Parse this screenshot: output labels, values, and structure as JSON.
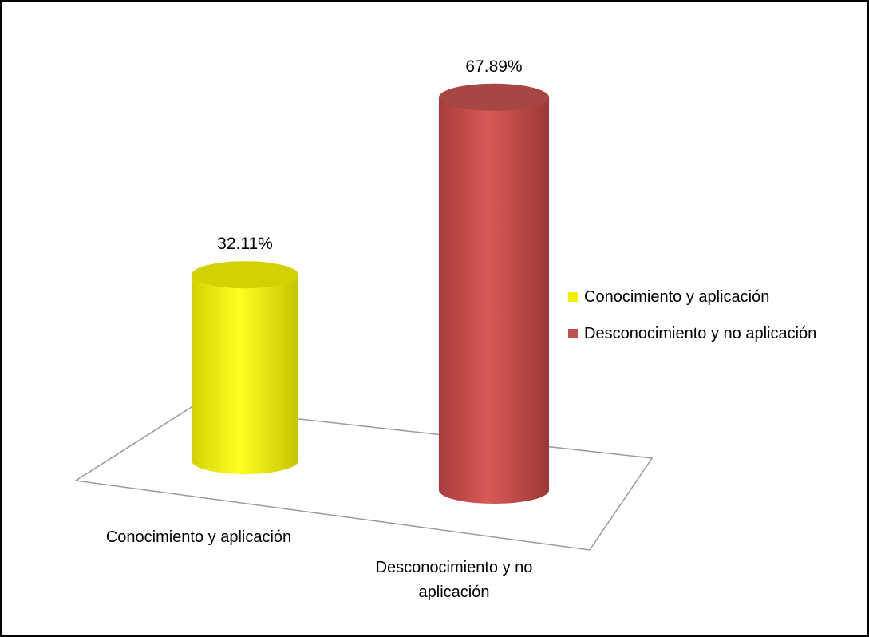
{
  "chart_data": {
    "type": "bar",
    "style": "3d-cylinder",
    "categories": [
      "Conocimiento y aplicación",
      "Desconocimiento y no aplicación"
    ],
    "values": [
      32.11,
      67.89
    ],
    "data_labels": [
      "32.11%",
      "67.89%"
    ],
    "colors": [
      "#f0f000",
      "#c0504d"
    ],
    "legend": {
      "position": "right",
      "entries": [
        "Conocimiento y aplicación",
        "Desconocimiento y no aplicación"
      ]
    },
    "title": "",
    "xlabel": "",
    "ylabel": "",
    "grid": false
  }
}
